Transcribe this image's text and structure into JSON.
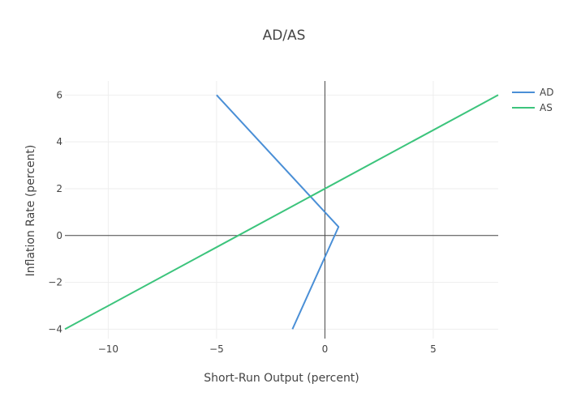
{
  "chart_data": {
    "type": "line",
    "title": "AD/AS",
    "xlabel": "Short-Run Output (percent)",
    "ylabel": "Inflation Rate (percent)",
    "xlim": [
      -12,
      8
    ],
    "ylim": [
      -4.4,
      6.6
    ],
    "xticks": [
      -10,
      -5,
      0,
      5
    ],
    "yticks": [
      -4,
      -2,
      0,
      2,
      4,
      6
    ],
    "xtick_labels": [
      "−10",
      "−5",
      "0",
      "5"
    ],
    "ytick_labels": [
      "−4",
      "−2",
      "0",
      "2",
      "4",
      "6"
    ],
    "grid": true,
    "zero_lines": true,
    "legend_position": "top-right",
    "series": [
      {
        "name": "AD",
        "color": "#4a8fd6",
        "points": [
          [
            -5,
            6
          ],
          [
            0.63,
            0.37
          ],
          [
            -1.5,
            -4
          ]
        ]
      },
      {
        "name": "AS",
        "color": "#3cc47c",
        "points": [
          [
            -12,
            -4
          ],
          [
            8,
            6
          ]
        ]
      }
    ]
  }
}
